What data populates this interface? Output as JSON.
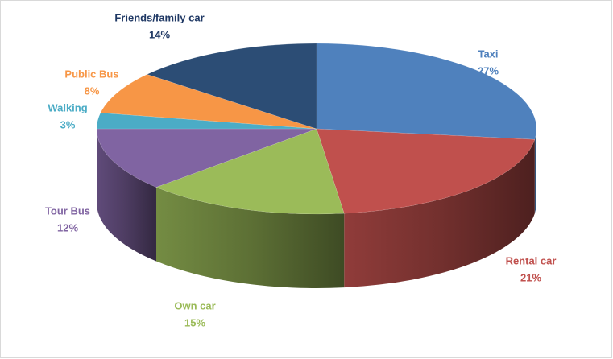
{
  "chart_data": {
    "type": "pie3d",
    "categories": [
      "Taxi",
      "Rental car",
      "Own car",
      "Tour Bus",
      "Walking",
      "Public Bus",
      "Friends/family car"
    ],
    "values": [
      27,
      21,
      15,
      12,
      3,
      8,
      14
    ],
    "value_labels": [
      "27%",
      "21%",
      "15%",
      "12%",
      "3%",
      "8%",
      "14%"
    ],
    "colors": [
      "#4f81bd",
      "#c0504d",
      "#9bbb59",
      "#8064a2",
      "#4bacc6",
      "#f79646",
      "#2c4d75"
    ]
  }
}
